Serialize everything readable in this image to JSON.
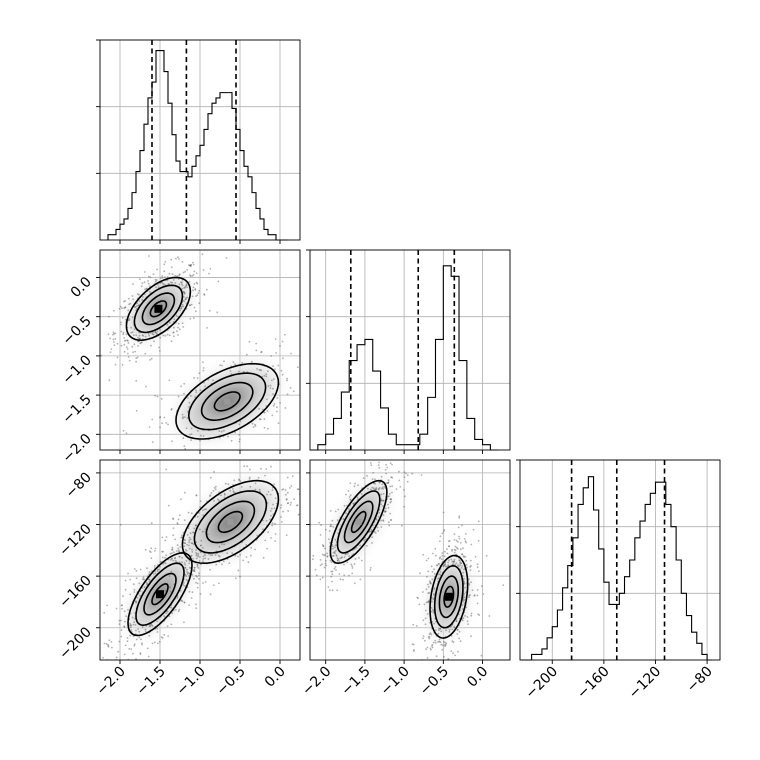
{
  "chart_data": {
    "type": "corner",
    "parameters": [
      {
        "ticks": [
          -2.0,
          -1.5,
          -1.0,
          -0.5,
          0.0
        ],
        "tick_labels": [
          "−2.0",
          "−1.5",
          "−1.0",
          "−0.5",
          "0.0"
        ],
        "range": [
          -2.25,
          0.25
        ]
      },
      {
        "ticks": [
          -2.0,
          -1.5,
          -1.0,
          -0.5,
          0.0
        ],
        "tick_labels": [
          "−2.0",
          "−1.5",
          "−1.0",
          "−0.5",
          "0.0"
        ],
        "range": [
          -2.2,
          0.35
        ]
      },
      {
        "ticks": [
          -200,
          -160,
          -120,
          -80
        ],
        "tick_labels": [
          "−200",
          "−160",
          "−120",
          "−80"
        ],
        "range": [
          -225,
          -70
        ]
      }
    ],
    "histograms": [
      {
        "x": [
          -2.125,
          -2.075,
          -2.025,
          -1.975,
          -1.925,
          -1.875,
          -1.825,
          -1.775,
          -1.725,
          -1.675,
          -1.625,
          -1.575,
          -1.525,
          -1.475,
          -1.425,
          -1.375,
          -1.325,
          -1.275,
          -1.225,
          -1.175,
          -1.125,
          -1.075,
          -1.025,
          -0.975,
          -0.925,
          -0.875,
          -0.825,
          -0.775,
          -0.725,
          -0.675,
          -0.625,
          -0.575,
          -0.525,
          -0.475,
          -0.425,
          -0.375,
          -0.325,
          -0.275,
          -0.225,
          -0.175,
          -0.125,
          -0.075,
          -0.025,
          0.025,
          0.075
        ],
        "counts": [
          1,
          1,
          2,
          3,
          4,
          6,
          9,
          13,
          17,
          22,
          27,
          30,
          36,
          36,
          32,
          26,
          20,
          15,
          13,
          13,
          12,
          14,
          16,
          18,
          21,
          24,
          26,
          27,
          28,
          28,
          28,
          25,
          21,
          17,
          14,
          12,
          9,
          6,
          4,
          2,
          1,
          1,
          0,
          0,
          0
        ],
        "quantiles": [
          -1.6,
          -1.17,
          -0.55
        ],
        "ylim": [
          0,
          38
        ]
      },
      {
        "x": [
          -2.15,
          -2.05,
          -1.95,
          -1.85,
          -1.75,
          -1.65,
          -1.55,
          -1.45,
          -1.35,
          -1.25,
          -1.15,
          -1.05,
          -0.95,
          -0.85,
          -0.75,
          -0.65,
          -0.55,
          -0.45,
          -0.35,
          -0.25,
          -0.15,
          -0.05,
          0.05,
          0.15
        ],
        "counts": [
          0,
          1,
          3,
          6,
          11,
          17,
          20,
          21,
          15,
          8,
          3,
          1,
          1,
          1,
          3,
          10,
          21,
          35,
          33,
          17,
          6,
          2,
          1,
          0
        ],
        "quantiles": [
          -1.68,
          -0.82,
          -0.36
        ],
        "ylim": [
          0,
          38
        ]
      },
      {
        "x": [
          -222,
          -218,
          -214,
          -210,
          -206,
          -202,
          -198,
          -194,
          -190,
          -186,
          -182,
          -178,
          -174,
          -170,
          -166,
          -162,
          -158,
          -154,
          -150,
          -146,
          -142,
          -138,
          -134,
          -130,
          -126,
          -122,
          -118,
          -114,
          -110,
          -106,
          -102,
          -98,
          -94,
          -90,
          -86,
          -82,
          -78
        ],
        "counts": [
          0,
          0,
          1,
          1,
          2,
          4,
          6,
          9,
          13,
          17,
          22,
          28,
          31,
          33,
          27,
          20,
          14,
          10,
          10,
          12,
          15,
          18,
          22,
          25,
          28,
          30,
          32,
          32,
          28,
          24,
          18,
          12,
          8,
          5,
          3,
          1,
          0
        ],
        "quantiles": [
          -185,
          -150,
          -113
        ],
        "ylim": [
          0,
          36
        ]
      }
    ],
    "contour_panels": [
      {
        "x_param": 0,
        "y_param": 1,
        "modes": [
          {
            "cx": -1.52,
            "cy": -0.4,
            "sx": 0.2,
            "sy": 0.2,
            "rho": 0.55,
            "weight": 1.0
          },
          {
            "cx": -0.66,
            "cy": -1.58,
            "sx": 0.32,
            "sy": 0.24,
            "rho": 0.5,
            "weight": 0.55
          }
        ]
      },
      {
        "x_param": 0,
        "y_param": 2,
        "modes": [
          {
            "cx": -1.5,
            "cy": -174,
            "sx": 0.2,
            "sy": 16,
            "rho": 0.7,
            "weight": 1.0
          },
          {
            "cx": -0.62,
            "cy": -118,
            "sx": 0.3,
            "sy": 16,
            "rho": 0.55,
            "weight": 0.75
          }
        ]
      },
      {
        "x_param": 1,
        "y_param": 2,
        "modes": [
          {
            "cx": -1.58,
            "cy": -118,
            "sx": 0.18,
            "sy": 16,
            "rho": 0.72,
            "weight": 0.85
          },
          {
            "cx": -0.43,
            "cy": -176,
            "sx": 0.12,
            "sy": 16,
            "rho": 0.3,
            "weight": 1.0
          }
        ]
      }
    ],
    "grid": true
  }
}
